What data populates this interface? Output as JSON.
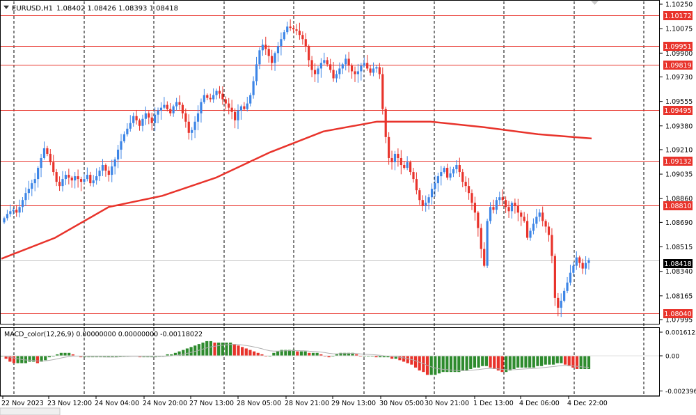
{
  "header": {
    "symbol_label": "EURUSD,H1",
    "ohlc": "1.08402 1.08426 1.08393 1.08418"
  },
  "macd_panel": {
    "label": "MACD_color(12,26,9) 0.00000000 0.00000000 -0.00118022",
    "axis_labels": [
      "0.0016125",
      "0.00",
      "-0.002396"
    ],
    "axis_values": [
      0.0016125,
      0.0,
      -0.002396
    ]
  },
  "price_axis": {
    "ticks": [
      "1.10250",
      "1.10075",
      "1.09900",
      "1.09730",
      "1.09555",
      "1.09380",
      "1.09210",
      "1.09035",
      "1.08860",
      "1.08690",
      "1.08515",
      "1.08340",
      "1.08165",
      "1.07995"
    ]
  },
  "price_lines": {
    "values": [
      "1.10172",
      "1.09951",
      "1.09819",
      "1.09495",
      "1.09132",
      "1.08810",
      "1.08040"
    ],
    "color": "#e8332b"
  },
  "current_price": {
    "value": "1.08418"
  },
  "time_axis": {
    "labels": [
      "22 Nov 2023",
      "23 Nov 12:00",
      "24 Nov 04:00",
      "24 Nov 20:00",
      "27 Nov 13:00",
      "28 Nov 05:00",
      "28 Nov 21:00",
      "29 Nov 13:00",
      "30 Nov 05:00",
      "30 Nov 21:00",
      "1 Dec 13:00",
      "4 Dec 06:00",
      "4 Dec 22:00"
    ]
  },
  "colors": {
    "bull": "#3d85e6",
    "bear": "#e8332b",
    "ma": "#e8332b",
    "macd_up": "#2e8b2e",
    "macd_down": "#e8332b",
    "signal": "#b0b0b0"
  },
  "chart_data": {
    "type": "candlestick",
    "symbol": "EURUSD",
    "timeframe": "H1",
    "ylim": [
      1.07995,
      1.1025
    ],
    "close_series": [
      1.0872,
      1.0875,
      1.0877,
      1.0878,
      1.0876,
      1.088,
      1.0885,
      1.089,
      1.0893,
      1.0897,
      1.09,
      1.0908,
      1.0915,
      1.0922,
      1.0918,
      1.0912,
      1.0905,
      1.0898,
      1.0895,
      1.09,
      1.0903,
      1.0901,
      1.0899,
      1.0902,
      1.09,
      1.0898,
      1.09,
      1.0903,
      1.0897,
      1.0899,
      1.0902,
      1.0906,
      1.091,
      1.0906,
      1.0903,
      1.0909,
      1.0914,
      1.0921,
      1.0927,
      1.0932,
      1.0936,
      1.094,
      1.0945,
      1.0942,
      1.0938,
      1.0943,
      1.0947,
      1.0944,
      1.094,
      1.0946,
      1.0949,
      1.0951,
      1.0953,
      1.095,
      1.0947,
      1.0952,
      1.0955,
      1.0953,
      1.0947,
      1.0941,
      1.0933,
      1.0935,
      1.0941,
      1.0947,
      1.0955,
      1.096,
      1.0958,
      1.0957,
      1.096,
      1.0963,
      1.0961,
      1.0957,
      1.0954,
      1.0951,
      1.0948,
      1.0942,
      1.0949,
      1.0952,
      1.095,
      1.0954,
      1.096,
      1.097,
      1.0982,
      1.0992,
      1.0996,
      1.0993,
      1.0988,
      1.0983,
      1.099,
      1.0995,
      1.1,
      1.1005,
      1.1009,
      1.1008,
      1.1007,
      1.1006,
      1.1003,
      1.1,
      1.0995,
      1.0985,
      1.0978,
      1.0975,
      1.0979,
      1.0983,
      1.0985,
      1.0982,
      1.0978,
      1.0972,
      1.0975,
      1.0979,
      1.0982,
      1.0986,
      1.0981,
      1.0977,
      1.0975,
      1.0977,
      1.0981,
      1.0983,
      1.0979,
      1.0976,
      1.0979,
      1.098,
      1.0975,
      1.095,
      1.093,
      1.0915,
      1.0912,
      1.0918,
      1.0915,
      1.091,
      1.0908,
      1.0912,
      1.0905,
      1.09,
      1.0892,
      1.0885,
      1.0881,
      1.0883,
      1.0887,
      1.0893,
      1.0897,
      1.0902,
      1.0905,
      1.0908,
      1.0901,
      1.0904,
      1.0907,
      1.091,
      1.0905,
      1.0898,
      1.0895,
      1.089,
      1.0883,
      1.0876,
      1.0865,
      1.085,
      1.0838,
      1.087,
      1.088,
      1.0878,
      1.0885,
      1.0887,
      1.0885,
      1.088,
      1.0877,
      1.0883,
      1.0881,
      1.0876,
      1.0873,
      1.087,
      1.0858,
      1.0863,
      1.0868,
      1.0873,
      1.0876,
      1.087,
      1.0866,
      1.086,
      1.0845,
      1.0815,
      1.0808,
      1.0813,
      1.082,
      1.0826,
      1.0833,
      1.0838,
      1.0844,
      1.084,
      1.0836,
      1.084,
      1.0842
    ],
    "ma_series": [
      1.0843,
      1.0858,
      1.088,
      1.0888,
      1.0901,
      1.0919,
      1.0934,
      1.0941,
      1.0941,
      1.0937,
      1.0932,
      1.0929
    ],
    "macd_hist": [
      0.0,
      -0.0002,
      -0.0004,
      -0.0005,
      -0.0005,
      -0.0005,
      -0.0005,
      -0.0004,
      -0.0004,
      -0.0005,
      -0.0004,
      -0.0003,
      -0.0001,
      0.0,
      0.0001,
      0.0002,
      0.0002,
      0.0002,
      0.0001,
      0.0,
      -0.0001,
      -0.0001,
      -0.0001,
      -0.0001,
      -0.0001,
      -0.0001,
      -0.0001,
      -0.0001,
      -0.0001,
      -0.0001,
      0.0,
      0.0,
      0.0,
      0.0,
      0.0,
      -0.0001,
      -0.0001,
      -0.0001,
      -0.0001,
      -0.0001,
      0.0,
      0.0,
      0.0001,
      0.0001,
      0.0002,
      0.0003,
      0.0004,
      0.0005,
      0.0006,
      0.0007,
      0.0008,
      0.0009,
      0.001,
      0.001,
      0.0009,
      0.0009,
      0.0009,
      0.0009,
      0.0009,
      0.0008,
      0.0007,
      0.0006,
      0.0005,
      0.0004,
      0.0003,
      0.0002,
      0.0001,
      0.0,
      0.0,
      0.0002,
      0.0003,
      0.0004,
      0.0004,
      0.0004,
      0.0004,
      0.0003,
      0.0003,
      0.0003,
      0.0002,
      0.0002,
      0.0002,
      0.0001,
      0.0,
      -0.0001,
      0.0,
      0.0001,
      0.0002,
      0.0002,
      0.0002,
      0.0002,
      0.0001,
      0.0,
      0.0,
      0.0,
      0.0,
      -0.0001,
      -0.0001,
      -0.0001,
      -0.0001,
      -0.0002,
      -0.0002,
      -0.0003,
      -0.0004,
      -0.0005,
      -0.0006,
      -0.0008,
      -0.001,
      -0.0011,
      -0.0013,
      -0.0013,
      -0.0013,
      -0.0012,
      -0.0011,
      -0.0011,
      -0.0011,
      -0.0011,
      -0.0011,
      -0.001,
      -0.001,
      -0.0009,
      -0.0008,
      -0.0008,
      -0.0007,
      -0.0007,
      -0.0008,
      -0.0009,
      -0.001,
      -0.0011,
      -0.0011,
      -0.001,
      -0.0009,
      -0.0008,
      -0.0008,
      -0.0008,
      -0.0008,
      -0.0008,
      -0.0007,
      -0.0007,
      -0.0006,
      -0.0006,
      -0.0006,
      -0.0005,
      -0.0005,
      -0.0006,
      -0.0007,
      -0.0008,
      -0.0009,
      -0.0009,
      -0.0009,
      -0.0009
    ]
  }
}
